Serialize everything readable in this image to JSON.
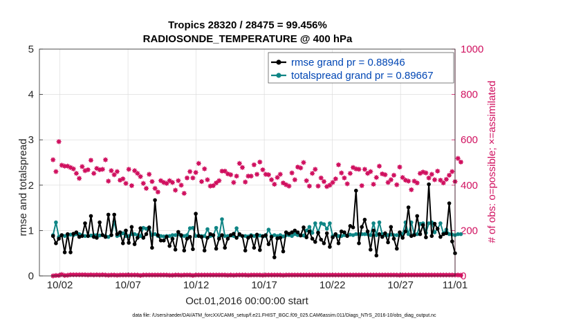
{
  "chart_data": {
    "type": "line",
    "title_line1": "Tropics 28320 / 28475 = 99.456%",
    "title_line2": "RADIOSONDE_TEMPERATURE @ 400 hPa",
    "xlabel": "Oct.01,2016 00:00:00 start",
    "ylabel_left": "rmse and totalspread",
    "ylabel_right": "# of obs: o=possible; ×=assimilated",
    "footer": "data file: /Users/raeder/DAI/ATM_forcXX/CAM6_setup/f.e21.FHIST_BGC.f09_025.CAM6assim.011/Diags_NTrS_2016-10/obs_diag_output.nc",
    "x_range": [
      0.5,
      31.0
    ],
    "y_left_range": [
      0,
      5
    ],
    "y_right_range": [
      0,
      1000
    ],
    "x_ticks": [
      {
        "x": 2,
        "label": "10/02"
      },
      {
        "x": 7,
        "label": "10/07"
      },
      {
        "x": 12,
        "label": "10/12"
      },
      {
        "x": 17,
        "label": "10/17"
      },
      {
        "x": 22,
        "label": "10/22"
      },
      {
        "x": 27,
        "label": "10/27"
      },
      {
        "x": 31,
        "label": "11/01"
      }
    ],
    "y_left_ticks": [
      "0",
      "1",
      "2",
      "3",
      "4",
      "5"
    ],
    "y_right_ticks": [
      "0",
      "200",
      "400",
      "600",
      "800",
      "1000"
    ],
    "grid": true,
    "legend_position": "top-right",
    "colors": {
      "rmse": "#000000",
      "totalspread": "#0f8585",
      "obs": "#d0105f",
      "right_axis": "#d0105f"
    },
    "series": [
      {
        "name": "rmse",
        "legend": "rmse grand pr = 0.88946",
        "values": [
          0.88,
          0.72,
          0.82,
          0.9,
          0.52,
          0.92,
          0.52,
          0.93,
          0.96,
          0.86,
          0.88,
          1.16,
          0.88,
          1.32,
          0.86,
          0.84,
          1.18,
          0.9,
          0.86,
          1.35,
          0.9,
          1.35,
          0.92,
          0.96,
          0.72,
          1.0,
          0.73,
          1.08,
          0.7,
          0.84,
          1.05,
          0.84,
          0.92,
          1.07,
          0.62,
          1.67,
          0.9,
          0.78,
          0.78,
          0.86,
          0.66,
          0.82,
          0.58,
          0.97,
          0.9,
          0.56,
          0.82,
          0.86,
          0.59,
          1.37,
          0.88,
          0.86,
          0.56,
          0.84,
          0.92,
          0.9,
          0.6,
          0.82,
          0.9,
          0.62,
          0.82,
          0.9,
          0.93,
          0.84,
          0.92,
          0.88,
          0.56,
          0.84,
          0.88,
          0.62,
          0.91,
          0.57,
          0.87,
          0.9,
          0.7,
          0.86,
          0.41,
          0.83,
          0.84,
          0.54,
          0.96,
          0.93,
          0.96,
          1.0,
          0.96,
          0.89,
          1.07,
          0.85,
          0.98,
          0.82,
          0.75,
          0.95,
          0.8,
          0.72,
          0.94,
          0.64,
          0.85,
          0.92,
          0.72,
          0.98,
          0.96,
          0.88,
          1.1,
          1.07,
          1.88,
          0.72,
          1.08,
          1.24,
          0.98,
          0.58,
          1.0,
          0.45,
          0.92,
          0.86,
          0.94,
          0.74,
          1.08,
          0.82,
          0.6,
          0.96,
          0.84,
          0.98,
          1.51,
          0.88,
          0.9,
          1.32,
          0.92,
          1.12,
          0.85,
          2.02,
          0.88,
          1.15,
          1.04,
          0.86,
          0.92,
          0.94,
          1.6,
          0.76,
          0.5
        ]
      },
      {
        "name": "totalspread",
        "legend": "totalspread grand pr = 0.89667",
        "values": [
          0.9,
          1.18,
          0.86,
          0.9,
          0.88,
          0.9,
          0.91,
          0.9,
          0.92,
          0.92,
          0.9,
          0.88,
          0.88,
          0.89,
          0.9,
          0.9,
          0.89,
          0.9,
          0.88,
          0.86,
          0.9,
          1.2,
          0.88,
          0.9,
          0.94,
          0.88,
          0.88,
          0.92,
          0.92,
          0.9,
          0.88,
          1.06,
          1.04,
          1.05,
          0.9,
          0.92,
          0.88,
          0.88,
          0.87,
          0.88,
          0.88,
          0.9,
          0.9,
          0.92,
          0.88,
          0.88,
          0.9,
          1.05,
          1.06,
          0.88,
          0.89,
          0.88,
          0.88,
          1.03,
          0.88,
          0.89,
          1.06,
          0.86,
          1.25,
          0.88,
          0.88,
          0.89,
          0.88,
          1.05,
          0.9,
          0.88,
          0.88,
          0.87,
          0.9,
          0.88,
          0.88,
          0.89,
          0.88,
          0.88,
          1.02,
          0.88,
          0.9,
          0.88,
          0.9,
          0.87,
          0.9,
          0.9,
          0.88,
          0.92,
          0.9,
          0.9,
          0.89,
          1.0,
          1.08,
          0.95,
          1.16,
          0.96,
          1.16,
          1.14,
          1.04,
          1.16,
          0.88,
          0.9,
          0.88,
          0.88,
          0.9,
          0.89,
          0.91,
          0.9,
          0.92,
          0.92,
          0.92,
          0.92,
          0.92,
          0.9,
          1.16,
          0.9,
          1.18,
          0.92,
          0.9,
          0.9,
          0.91,
          0.9,
          0.9,
          0.9,
          0.92,
          1.18,
          0.92,
          1.18,
          0.92,
          0.92,
          1.15,
          1.16,
          0.95,
          1.16,
          1.18,
          0.96,
          1.04,
          1.16,
          0.94,
          1.02,
          0.92,
          0.91,
          0.9,
          0.92,
          0.92
        ]
      }
    ],
    "obs_possible": [
      512,
      460,
      592,
      488,
      484,
      484,
      478,
      472,
      452,
      430,
      482,
      464,
      468,
      510,
      452,
      474,
      468,
      470,
      512,
      418,
      464,
      446,
      460,
      422,
      428,
      408,
      470,
      398,
      464,
      452,
      438,
      408,
      386,
      448,
      416,
      386,
      370,
      420,
      412,
      408,
      420,
      412,
      378,
      420,
      400,
      364,
      432,
      460,
      432,
      456,
      496,
      416,
      472,
      424,
      396,
      398,
      410,
      420,
      462,
      462,
      450,
      446,
      412,
      440,
      496,
      478,
      414,
      440,
      440,
      490,
      448,
      502,
      468,
      448,
      446,
      424,
      404,
      434,
      448,
      410,
      402,
      396,
      454,
      424,
      480,
      476,
      500,
      420,
      396,
      452,
      470,
      396,
      432,
      416,
      394,
      400,
      412,
      428,
      490,
      454,
      432,
      406,
      452,
      478,
      472,
      470,
      398,
      470,
      452,
      460,
      404,
      434,
      484,
      450,
      446,
      412,
      424,
      444,
      402,
      480,
      434,
      422,
      418,
      380,
      418,
      410,
      452,
      458,
      454,
      432,
      448,
      424,
      462,
      422,
      410,
      426,
      444,
      460,
      416,
      518,
      502
    ],
    "obs_assimilated": [
      0,
      2,
      2,
      6,
      2,
      3,
      5,
      5,
      5,
      5,
      5,
      5,
      4,
      5,
      4,
      5,
      4,
      5,
      4,
      3,
      4,
      4,
      3,
      4,
      4,
      4,
      4,
      4,
      4,
      4,
      2,
      4,
      4,
      4,
      4,
      4,
      4,
      4,
      4,
      4,
      3,
      3,
      4,
      4,
      3,
      4,
      4,
      4,
      2,
      4,
      4,
      4,
      4,
      4,
      4,
      4,
      4,
      4,
      4,
      4,
      3,
      4,
      3,
      4,
      4,
      4,
      4,
      3,
      4,
      4,
      4,
      4,
      3,
      4,
      4,
      4,
      4,
      4,
      4,
      3,
      4,
      4,
      4,
      4,
      4,
      4,
      4,
      4,
      4,
      4,
      4,
      4,
      4,
      4,
      4,
      4,
      4,
      4,
      4,
      4,
      4,
      4,
      4,
      4,
      4,
      4,
      4,
      4,
      4,
      4,
      4,
      4,
      4,
      4,
      4,
      4,
      4,
      4,
      4,
      3,
      4,
      4,
      4,
      4,
      4,
      4,
      4,
      4,
      4,
      4,
      4,
      4,
      4,
      4,
      4,
      4,
      4,
      4,
      4,
      4,
      3
    ]
  }
}
